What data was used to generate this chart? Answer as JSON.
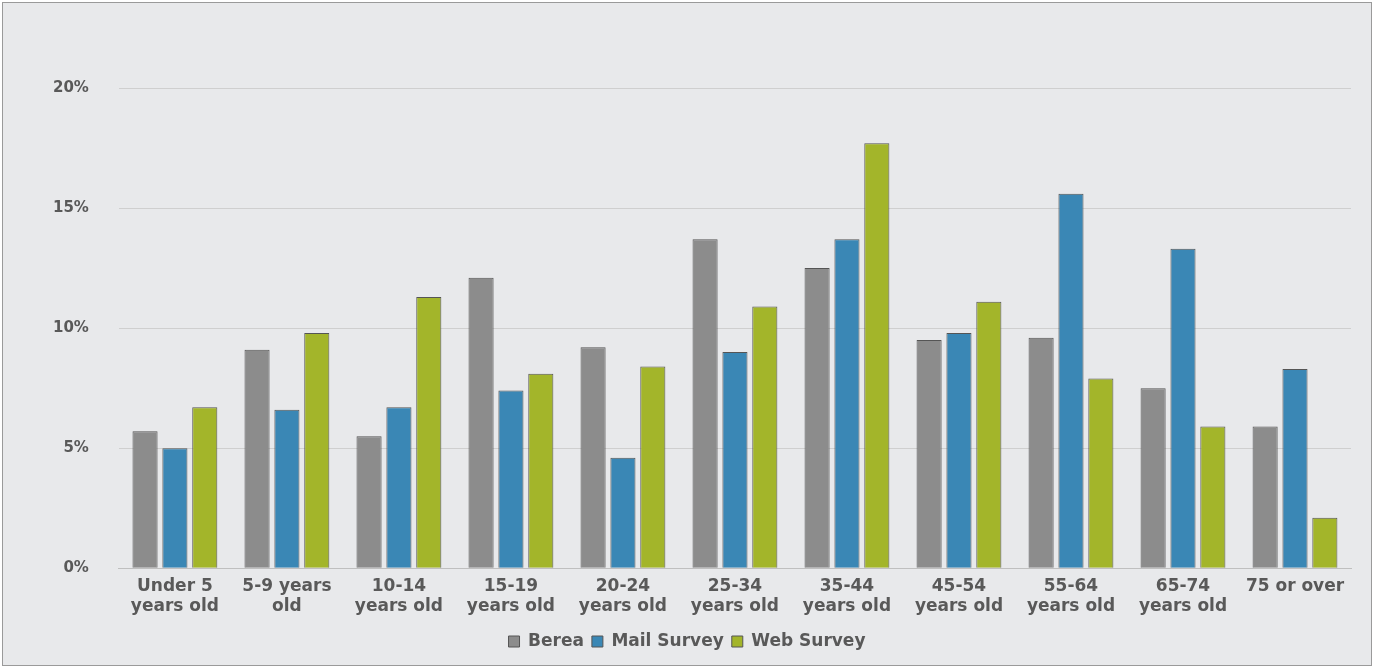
{
  "chart_data": {
    "type": "bar",
    "categories": [
      "Under 5 years old",
      "5-9 years old",
      "10-14 years old",
      "15-19 years old",
      "20-24 years old",
      "25-34 years old",
      "35-44 years old",
      "45-54 years old",
      "55-64 years old",
      "65-74 years old",
      "75 or over"
    ],
    "series": [
      {
        "name": "Berea",
        "color": "#8c8c8c",
        "values": [
          5.7,
          9.1,
          5.5,
          12.1,
          9.2,
          13.7,
          12.5,
          9.5,
          9.6,
          7.5,
          5.9
        ]
      },
      {
        "name": "Mail Survey",
        "color": "#3a87b5",
        "values": [
          5.0,
          6.6,
          6.7,
          7.4,
          4.6,
          9.0,
          13.7,
          9.8,
          15.6,
          13.3,
          8.3
        ]
      },
      {
        "name": "Web Survey",
        "color": "#a3b52a",
        "values": [
          6.7,
          9.8,
          11.3,
          8.1,
          8.4,
          10.9,
          17.7,
          11.1,
          7.9,
          5.9,
          2.1
        ]
      }
    ],
    "ylim": [
      0,
      20
    ],
    "yticks": [
      {
        "value": 0,
        "label": "0%"
      },
      {
        "value": 5,
        "label": "5%"
      },
      {
        "value": 10,
        "label": "10%"
      },
      {
        "value": 15,
        "label": "15%"
      },
      {
        "value": 20,
        "label": "20%"
      }
    ],
    "grid": "y",
    "legend": "bottom"
  }
}
